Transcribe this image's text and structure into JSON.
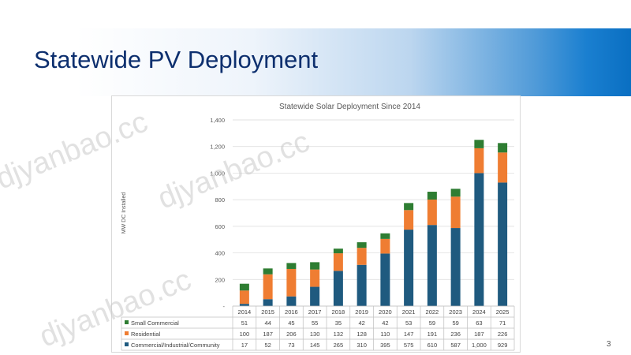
{
  "slide": {
    "title": "Statewide PV Deployment",
    "page_number": "3",
    "watermark": "djyanbao.cc"
  },
  "colors": {
    "commercial": "#1f5a7f",
    "residential": "#ef7d32",
    "small_commercial": "#2e7d32",
    "title_text": "#0d2f6e",
    "gridline": "#d9d9d9"
  },
  "chart_data": {
    "type": "bar",
    "stacked": true,
    "title": "Statewide Solar Deployment Since 2014",
    "ylabel": "MW DC Installed",
    "xlabel": "",
    "ylim": [
      0,
      1400
    ],
    "yticks": [
      "-",
      "200",
      "400",
      "600",
      "800",
      "1,000",
      "1,200",
      "1,400"
    ],
    "grid": true,
    "legend": "data-table",
    "categories": [
      "2014",
      "2015",
      "2016",
      "2017",
      "2018",
      "2019",
      "2020",
      "2021",
      "2022",
      "2023",
      "2024",
      "2025"
    ],
    "series": [
      {
        "name": "Small Commercial",
        "values": [
          51,
          44,
          45,
          55,
          35,
          42,
          42,
          53,
          59,
          59,
          63,
          71
        ],
        "labels": [
          "51",
          "44",
          "45",
          "55",
          "35",
          "42",
          "42",
          "53",
          "59",
          "59",
          "63",
          "71"
        ]
      },
      {
        "name": "Residential",
        "values": [
          100,
          187,
          206,
          130,
          132,
          128,
          110,
          147,
          191,
          236,
          187,
          226
        ],
        "labels": [
          "100",
          "187",
          "206",
          "130",
          "132",
          "128",
          "110",
          "147",
          "191",
          "236",
          "187",
          "226"
        ]
      },
      {
        "name": "Commercial/Industrial/Community",
        "values": [
          17,
          52,
          73,
          145,
          265,
          310,
          395,
          575,
          610,
          587,
          1000,
          929
        ],
        "labels": [
          "17",
          "52",
          "73",
          "145",
          "265",
          "310",
          "395",
          "575",
          "610",
          "587",
          "1,000",
          "929"
        ]
      }
    ]
  }
}
